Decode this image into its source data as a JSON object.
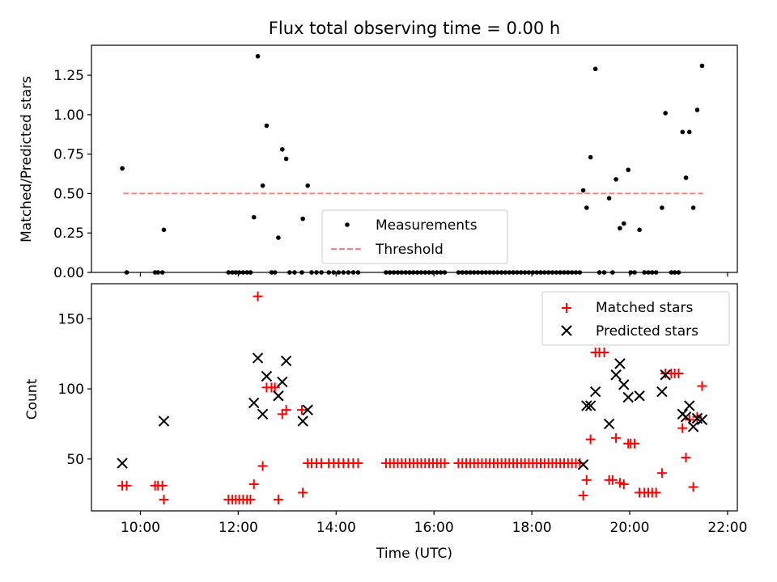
{
  "chart_data": [
    {
      "type": "scatter",
      "title": "Flux total observing time = 0.00 h",
      "xlabel": "",
      "ylabel": "Matched/Predicted stars",
      "xlim": [
        9.0,
        22.2
      ],
      "ylim": [
        0.0,
        1.44
      ],
      "yticks": [
        0.0,
        0.25,
        0.5,
        0.75,
        1.0,
        1.25
      ],
      "ytick_labels": [
        "0.00",
        "0.25",
        "0.50",
        "0.75",
        "1.00",
        "1.25"
      ],
      "grid": false,
      "legend": {
        "placement": "lower center",
        "entries": [
          "Measurements",
          "Threshold"
        ]
      },
      "threshold": {
        "name": "Threshold",
        "y": 0.5,
        "x": [
          9.65,
          21.5
        ],
        "color": "#ff7f7f"
      },
      "series": [
        {
          "name": "Measurements",
          "color": "#000000",
          "marker": "dot",
          "points": [
            [
              9.63,
              0.66
            ],
            [
              9.72,
              0.0
            ],
            [
              10.3,
              0.0
            ],
            [
              10.36,
              0.0
            ],
            [
              10.45,
              0.0
            ],
            [
              10.48,
              0.27
            ],
            [
              11.8,
              0.0
            ],
            [
              11.88,
              0.0
            ],
            [
              11.95,
              0.0
            ],
            [
              12.02,
              0.0
            ],
            [
              12.1,
              0.0
            ],
            [
              12.18,
              0.0
            ],
            [
              12.25,
              0.0
            ],
            [
              12.32,
              0.35
            ],
            [
              12.4,
              1.37
            ],
            [
              12.5,
              0.55
            ],
            [
              12.58,
              0.93
            ],
            [
              12.68,
              0.0
            ],
            [
              12.75,
              0.0
            ],
            [
              12.82,
              0.22
            ],
            [
              12.9,
              0.78
            ],
            [
              12.98,
              0.72
            ],
            [
              13.05,
              0.0
            ],
            [
              13.15,
              0.0
            ],
            [
              13.3,
              0.0
            ],
            [
              13.32,
              0.34
            ],
            [
              13.42,
              0.55
            ],
            [
              13.5,
              0.0
            ],
            [
              13.6,
              0.0
            ],
            [
              13.7,
              0.0
            ],
            [
              13.85,
              0.0
            ],
            [
              13.95,
              0.0
            ],
            [
              14.05,
              0.0
            ],
            [
              14.15,
              0.0
            ],
            [
              14.25,
              0.0
            ],
            [
              14.35,
              0.0
            ],
            [
              14.45,
              0.0
            ],
            [
              15.02,
              0.0
            ],
            [
              15.1,
              0.0
            ],
            [
              15.18,
              0.0
            ],
            [
              15.26,
              0.0
            ],
            [
              15.34,
              0.0
            ],
            [
              15.42,
              0.0
            ],
            [
              15.5,
              0.0
            ],
            [
              15.58,
              0.0
            ],
            [
              15.66,
              0.0
            ],
            [
              15.74,
              0.0
            ],
            [
              15.82,
              0.0
            ],
            [
              15.9,
              0.0
            ],
            [
              15.98,
              0.0
            ],
            [
              16.06,
              0.0
            ],
            [
              16.14,
              0.0
            ],
            [
              16.22,
              0.0
            ],
            [
              16.5,
              0.0
            ],
            [
              16.58,
              0.0
            ],
            [
              16.66,
              0.0
            ],
            [
              16.74,
              0.0
            ],
            [
              16.82,
              0.0
            ],
            [
              16.9,
              0.0
            ],
            [
              16.98,
              0.0
            ],
            [
              17.06,
              0.0
            ],
            [
              17.14,
              0.0
            ],
            [
              17.22,
              0.0
            ],
            [
              17.3,
              0.0
            ],
            [
              17.38,
              0.0
            ],
            [
              17.46,
              0.0
            ],
            [
              17.54,
              0.0
            ],
            [
              17.62,
              0.0
            ],
            [
              17.7,
              0.0
            ],
            [
              17.78,
              0.0
            ],
            [
              17.86,
              0.0
            ],
            [
              17.94,
              0.0
            ],
            [
              18.02,
              0.0
            ],
            [
              18.1,
              0.0
            ],
            [
              18.18,
              0.0
            ],
            [
              18.26,
              0.0
            ],
            [
              18.34,
              0.0
            ],
            [
              18.42,
              0.0
            ],
            [
              18.5,
              0.0
            ],
            [
              18.58,
              0.0
            ],
            [
              18.66,
              0.0
            ],
            [
              18.74,
              0.0
            ],
            [
              18.82,
              0.0
            ],
            [
              18.9,
              0.0
            ],
            [
              18.98,
              0.0
            ],
            [
              19.05,
              0.52
            ],
            [
              19.12,
              0.41
            ],
            [
              19.2,
              0.73
            ],
            [
              19.3,
              1.29
            ],
            [
              19.38,
              0.0
            ],
            [
              19.48,
              0.0
            ],
            [
              19.58,
              0.47
            ],
            [
              19.65,
              0.0
            ],
            [
              19.72,
              0.59
            ],
            [
              19.8,
              0.28
            ],
            [
              19.88,
              0.31
            ],
            [
              19.97,
              0.65
            ],
            [
              20.02,
              0.0
            ],
            [
              20.1,
              0.0
            ],
            [
              20.2,
              0.27
            ],
            [
              20.3,
              0.0
            ],
            [
              20.38,
              0.0
            ],
            [
              20.46,
              0.0
            ],
            [
              20.54,
              0.0
            ],
            [
              20.66,
              0.41
            ],
            [
              20.73,
              1.01
            ],
            [
              20.85,
              0.0
            ],
            [
              20.92,
              0.0
            ],
            [
              21.0,
              0.0
            ],
            [
              21.08,
              0.89
            ],
            [
              21.15,
              0.6
            ],
            [
              21.22,
              0.89
            ],
            [
              21.3,
              0.41
            ],
            [
              21.38,
              1.03
            ],
            [
              21.48,
              1.31
            ]
          ]
        }
      ]
    },
    {
      "type": "scatter",
      "title": "",
      "xlabel": "Time (UTC)",
      "ylabel": "Count",
      "xlim": [
        9.0,
        22.2
      ],
      "ylim": [
        13,
        175
      ],
      "yticks": [
        50,
        100,
        150
      ],
      "ytick_labels": [
        "50",
        "100",
        "150"
      ],
      "xticks": [
        10,
        12,
        14,
        16,
        18,
        20,
        22
      ],
      "xtick_labels": [
        "10:00",
        "12:00",
        "14:00",
        "16:00",
        "18:00",
        "20:00",
        "22:00"
      ],
      "grid": false,
      "legend": {
        "placement": "upper right",
        "entries": [
          "Matched stars",
          "Predicted stars"
        ]
      },
      "series": [
        {
          "name": "Matched stars",
          "color": "#ff0000",
          "marker": "plus",
          "points": [
            [
              9.63,
              31
            ],
            [
              9.72,
              31
            ],
            [
              10.3,
              31
            ],
            [
              10.36,
              31
            ],
            [
              10.45,
              31
            ],
            [
              10.48,
              21
            ],
            [
              11.8,
              21
            ],
            [
              11.88,
              21
            ],
            [
              11.95,
              21
            ],
            [
              12.02,
              21
            ],
            [
              12.1,
              21
            ],
            [
              12.18,
              21
            ],
            [
              12.25,
              21
            ],
            [
              12.32,
              32
            ],
            [
              12.4,
              166
            ],
            [
              12.5,
              45
            ],
            [
              12.58,
              101
            ],
            [
              12.68,
              101
            ],
            [
              12.75,
              101
            ],
            [
              12.82,
              21
            ],
            [
              12.9,
              82
            ],
            [
              12.98,
              85
            ],
            [
              13.3,
              85
            ],
            [
              13.32,
              26
            ],
            [
              13.42,
              47
            ],
            [
              13.5,
              47
            ],
            [
              13.6,
              47
            ],
            [
              13.7,
              47
            ],
            [
              13.85,
              47
            ],
            [
              13.95,
              47
            ],
            [
              14.05,
              47
            ],
            [
              14.15,
              47
            ],
            [
              14.25,
              47
            ],
            [
              14.35,
              47
            ],
            [
              14.45,
              47
            ],
            [
              15.02,
              47
            ],
            [
              15.1,
              47
            ],
            [
              15.18,
              47
            ],
            [
              15.26,
              47
            ],
            [
              15.34,
              47
            ],
            [
              15.42,
              47
            ],
            [
              15.5,
              47
            ],
            [
              15.58,
              47
            ],
            [
              15.66,
              47
            ],
            [
              15.74,
              47
            ],
            [
              15.82,
              47
            ],
            [
              15.9,
              47
            ],
            [
              15.98,
              47
            ],
            [
              16.06,
              47
            ],
            [
              16.14,
              47
            ],
            [
              16.22,
              47
            ],
            [
              16.5,
              47
            ],
            [
              16.58,
              47
            ],
            [
              16.66,
              47
            ],
            [
              16.74,
              47
            ],
            [
              16.82,
              47
            ],
            [
              16.9,
              47
            ],
            [
              16.98,
              47
            ],
            [
              17.06,
              47
            ],
            [
              17.14,
              47
            ],
            [
              17.22,
              47
            ],
            [
              17.3,
              47
            ],
            [
              17.38,
              47
            ],
            [
              17.46,
              47
            ],
            [
              17.54,
              47
            ],
            [
              17.62,
              47
            ],
            [
              17.7,
              47
            ],
            [
              17.78,
              47
            ],
            [
              17.86,
              47
            ],
            [
              17.94,
              47
            ],
            [
              18.02,
              47
            ],
            [
              18.1,
              47
            ],
            [
              18.18,
              47
            ],
            [
              18.26,
              47
            ],
            [
              18.34,
              47
            ],
            [
              18.42,
              47
            ],
            [
              18.5,
              47
            ],
            [
              18.58,
              47
            ],
            [
              18.66,
              47
            ],
            [
              18.74,
              47
            ],
            [
              18.82,
              47
            ],
            [
              18.9,
              47
            ],
            [
              18.98,
              47
            ],
            [
              19.05,
              24
            ],
            [
              19.12,
              35
            ],
            [
              19.2,
              64
            ],
            [
              19.3,
              126
            ],
            [
              19.38,
              126
            ],
            [
              19.48,
              126
            ],
            [
              19.58,
              35
            ],
            [
              19.65,
              35
            ],
            [
              19.72,
              65
            ],
            [
              19.8,
              33
            ],
            [
              19.88,
              32
            ],
            [
              19.97,
              61
            ],
            [
              20.02,
              61
            ],
            [
              20.1,
              61
            ],
            [
              20.2,
              26
            ],
            [
              20.3,
              26
            ],
            [
              20.38,
              26
            ],
            [
              20.46,
              26
            ],
            [
              20.54,
              26
            ],
            [
              20.66,
              40
            ],
            [
              20.73,
              111
            ],
            [
              20.85,
              111
            ],
            [
              20.92,
              111
            ],
            [
              21.0,
              111
            ],
            [
              21.08,
              72
            ],
            [
              21.15,
              51
            ],
            [
              21.22,
              78
            ],
            [
              21.3,
              30
            ],
            [
              21.38,
              80
            ],
            [
              21.48,
              102
            ]
          ]
        },
        {
          "name": "Predicted stars",
          "color": "#000000",
          "marker": "x",
          "points": [
            [
              9.63,
              47
            ],
            [
              10.48,
              77
            ],
            [
              12.32,
              90
            ],
            [
              12.4,
              122
            ],
            [
              12.5,
              82
            ],
            [
              12.58,
              109
            ],
            [
              12.82,
              95
            ],
            [
              12.9,
              105
            ],
            [
              12.98,
              120
            ],
            [
              13.32,
              77
            ],
            [
              13.42,
              85
            ],
            [
              19.05,
              46
            ],
            [
              19.12,
              88
            ],
            [
              19.2,
              88
            ],
            [
              19.3,
              98
            ],
            [
              19.58,
              75
            ],
            [
              19.72,
              110
            ],
            [
              19.8,
              118
            ],
            [
              19.88,
              103
            ],
            [
              19.97,
              94
            ],
            [
              20.2,
              95
            ],
            [
              20.66,
              98
            ],
            [
              20.73,
              110
            ],
            [
              21.08,
              82
            ],
            [
              21.15,
              80
            ],
            [
              21.22,
              88
            ],
            [
              21.3,
              73
            ],
            [
              21.38,
              79
            ],
            [
              21.48,
              78
            ]
          ]
        }
      ]
    }
  ]
}
